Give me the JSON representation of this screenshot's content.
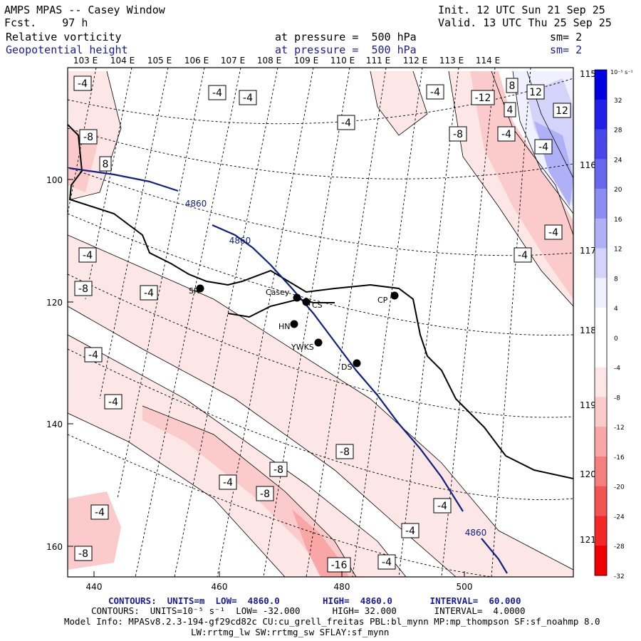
{
  "header": {
    "title": "AMPS MPAS -- Casey Window",
    "fcst": "Fcst.    97 h",
    "init": "Init. 12 UTC Sun 21 Sep 25",
    "valid": "Valid. 13 UTC Thu 25 Sep 25",
    "fields": [
      {
        "name": "Relative vorticity",
        "pressure": "at pressure =  500 hPa",
        "sm": "sm= 2"
      },
      {
        "name": "Geopotential height",
        "pressure": "at pressure =  500 hPa",
        "sm": "sm= 2"
      }
    ]
  },
  "map": {
    "lon_labels_top": [
      "103 E",
      "104 E",
      "105 E",
      "106 E",
      "107 E",
      "108 E",
      "109 E",
      "110 E",
      "111 E",
      "112 E",
      "113 E",
      "114 E"
    ],
    "lon_labels_right": [
      "115 E",
      "116 E",
      "117 E",
      "118 E",
      "119 E",
      "120 E",
      "121 E"
    ],
    "x_ticks": [
      "440",
      "460",
      "480",
      "500"
    ],
    "y_ticks": [
      "100",
      "120",
      "140",
      "160"
    ],
    "stations": [
      {
        "name": "SR"
      },
      {
        "name": "Casey"
      },
      {
        "name": "CS"
      },
      {
        "name": "HN"
      },
      {
        "name": "YWKS"
      },
      {
        "name": "DS"
      },
      {
        "name": "CP"
      }
    ],
    "height_contour_labels": [
      "4860",
      "4860",
      "4860"
    ],
    "vorticity_labels": [
      "-4",
      "-4",
      "-4",
      "-4",
      "-12",
      "8",
      "12",
      "4",
      "-4",
      "-8",
      "-4",
      "-8",
      "-4",
      "12",
      "8",
      "-4",
      "-4",
      "-4",
      "-8",
      "-4",
      "-4",
      "-8",
      "-4",
      "-8",
      "-4",
      "-8",
      "-4",
      "-4",
      "-4",
      "-8",
      "-16",
      "-4"
    ]
  },
  "colorbar": {
    "unit": "10⁻⁵ s⁻¹",
    "ticks": [
      "32",
      "28",
      "24",
      "20",
      "16",
      "12",
      "8",
      "4",
      "0",
      "-4",
      "-8",
      "-12",
      "-16",
      "-20",
      "-24",
      "-28",
      "-32"
    ],
    "colors": [
      "#0000e0",
      "#2020e8",
      "#4646ea",
      "#6868ee",
      "#8c8cf2",
      "#b0b0f6",
      "#d4d4fa",
      "#f0f0fe",
      "#ffffff",
      "#ffffff",
      "#fde6e6",
      "#fbcaca",
      "#f8a6a6",
      "#f57e7e",
      "#f25454",
      "#f02828",
      "#ee0000"
    ]
  },
  "footer": {
    "contours1": "CONTOURS:  UNITS=m  LOW=  4860.0        HIGH=  4860.0       INTERVAL=  60.000",
    "contours2": "CONTOURS:  UNITS=10⁻⁵ s⁻¹  LOW= -32.000      HIGH= 32.000       INTERVAL=  4.0000",
    "model1": "Model Info: MPASv8.2.3-194-gf29cd82c CU:cu_grell_freitas PBL:bl_mynn MP:mp_thompson SF:sf_noahmp 8.0",
    "model2": "LW:rrtmg_lw SW:rrtmg_sw SFLAY:sf_mynn"
  }
}
